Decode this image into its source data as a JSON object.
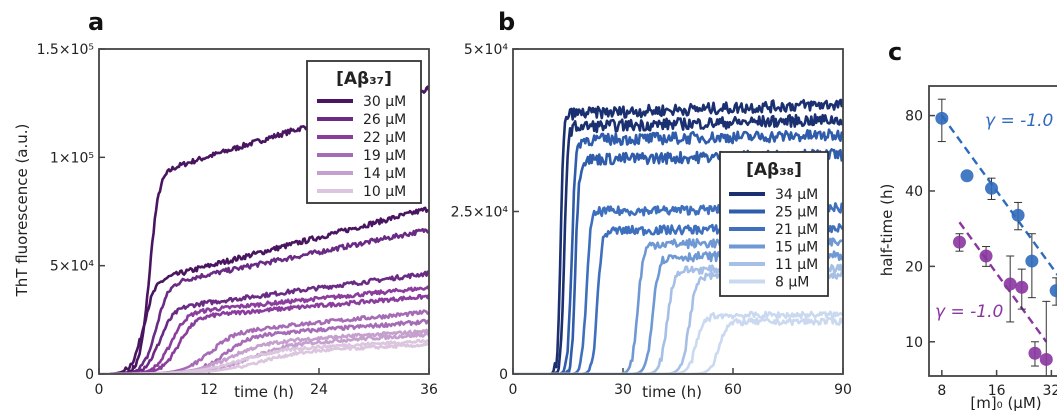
{
  "colors": {
    "c30": "#4a1560",
    "c26": "#6a2b84",
    "c22": "#8a3d9d",
    "c19": "#a66bb5",
    "c14": "#c59fcd",
    "c10": "#dcc6df",
    "c34": "#1b3070",
    "c25": "#2f5cab",
    "c21": "#3e70be",
    "c15": "#6f99d4",
    "c11": "#a6bfe6",
    "c8": "#cad9f0",
    "blue_fit": "#2f6bbd",
    "purple_fit": "#8a36a0"
  },
  "chart_data": [
    {
      "type": "line",
      "panel": "a",
      "ylabel": "ThT fluorescence (a.u.)",
      "xlabel": "time (h)",
      "xlim": [
        0,
        36
      ],
      "ylim": [
        0,
        150000
      ],
      "xticks": [
        {
          "v": 0,
          "label": "0"
        },
        {
          "v": 12,
          "label": "12"
        },
        {
          "v": 24,
          "label": "24"
        },
        {
          "v": 36,
          "label": "36"
        }
      ],
      "yticks": [
        {
          "v": 0,
          "label": "0"
        },
        {
          "v": 50000,
          "label": "5×10⁴"
        },
        {
          "v": 100000,
          "label": "1×10⁵"
        },
        {
          "v": 150000,
          "label": "1.5×10⁵"
        }
      ],
      "legend_title": "[Aβ₃₇]",
      "legend_position": "top-right",
      "series": [
        {
          "name": "30 µM",
          "color": "c30",
          "replicates": [
            {
              "t50": 5.5,
              "k": 2.0,
              "plateau": 92000,
              "drift": 1300,
              "jitter": 1200
            },
            {
              "t50": 4.8,
              "k": 1.6,
              "plateau": 42000,
              "drift": 1100,
              "jitter": 1200
            }
          ]
        },
        {
          "name": "26 µM",
          "color": "c26",
          "replicates": [
            {
              "t50": 6.2,
              "k": 1.5,
              "plateau": 41000,
              "drift": 860,
              "jitter": 1100
            },
            {
              "t50": 6.6,
              "k": 1.3,
              "plateau": 30000,
              "drift": 560,
              "jitter": 1000
            }
          ]
        },
        {
          "name": "22 µM",
          "color": "c22",
          "replicates": [
            {
              "t50": 7.8,
              "k": 1.2,
              "plateau": 28000,
              "drift": 420,
              "jitter": 900
            },
            {
              "t50": 8.6,
              "k": 1.1,
              "plateau": 26000,
              "drift": 360,
              "jitter": 900
            }
          ]
        },
        {
          "name": "19 µM",
          "color": "c19",
          "replicates": [
            {
              "t50": 12.0,
              "k": 0.7,
              "plateau": 19000,
              "drift": 400,
              "jitter": 900
            },
            {
              "t50": 13.5,
              "k": 0.7,
              "plateau": 17000,
              "drift": 320,
              "jitter": 900
            }
          ]
        },
        {
          "name": "14 µM",
          "color": "c14",
          "replicates": [
            {
              "t50": 14.0,
              "k": 0.5,
              "plateau": 14000,
              "drift": 260,
              "jitter": 800
            },
            {
              "t50": 16.0,
              "k": 0.45,
              "plateau": 13000,
              "drift": 260,
              "jitter": 800
            }
          ]
        },
        {
          "name": "10 µM",
          "color": "c10",
          "replicates": [
            {
              "t50": 15.0,
              "k": 0.4,
              "plateau": 11000,
              "drift": 200,
              "jitter": 700
            },
            {
              "t50": 17.0,
              "k": 0.4,
              "plateau": 10000,
              "drift": 180,
              "jitter": 700
            }
          ]
        }
      ]
    },
    {
      "type": "line",
      "panel": "b",
      "xlabel": "time (h)",
      "xlim": [
        0,
        90
      ],
      "ylim": [
        0,
        50000
      ],
      "xticks": [
        {
          "v": 0,
          "label": "0"
        },
        {
          "v": 30,
          "label": "30"
        },
        {
          "v": 60,
          "label": "60"
        },
        {
          "v": 90,
          "label": "90"
        }
      ],
      "yticks": [
        {
          "v": 0,
          "label": "0"
        },
        {
          "v": 25000,
          "label": "2.5×10⁴"
        },
        {
          "v": 50000,
          "label": "5×10⁴"
        }
      ],
      "legend_title": "[Aβ₃₈]",
      "legend_position": "right",
      "series": [
        {
          "name": "34 µM",
          "color": "c34",
          "replicates": [
            {
              "t50": 13.0,
              "k": 2.5,
              "plateau": 40000,
              "drift": 20,
              "jitter": 900
            },
            {
              "t50": 14.0,
              "k": 2.3,
              "plateau": 38000,
              "drift": 15,
              "jitter": 900
            }
          ]
        },
        {
          "name": "25 µM",
          "color": "c25",
          "replicates": [
            {
              "t50": 16.0,
              "k": 2.0,
              "plateau": 36000,
              "drift": 10,
              "jitter": 900
            },
            {
              "t50": 17.0,
              "k": 2.0,
              "plateau": 33000,
              "drift": 10,
              "jitter": 900
            }
          ]
        },
        {
          "name": "21 µM",
          "color": "c21",
          "replicates": [
            {
              "t50": 20.0,
              "k": 1.7,
              "plateau": 25000,
              "drift": 8,
              "jitter": 700
            },
            {
              "t50": 23.0,
              "k": 1.6,
              "plateau": 22000,
              "drift": 8,
              "jitter": 700
            }
          ]
        },
        {
          "name": "15 µM",
          "color": "c15",
          "replicates": [
            {
              "t50": 34.0,
              "k": 1.3,
              "plateau": 20000,
              "drift": 5,
              "jitter": 700
            },
            {
              "t50": 38.0,
              "k": 1.2,
              "plateau": 18000,
              "drift": 5,
              "jitter": 700
            }
          ]
        },
        {
          "name": "11 µM",
          "color": "c11",
          "replicates": [
            {
              "t50": 42.0,
              "k": 1.1,
              "plateau": 16000,
              "drift": 5,
              "jitter": 600
            },
            {
              "t50": 48.0,
              "k": 1.0,
              "plateau": 15000,
              "drift": 5,
              "jitter": 600
            }
          ]
        },
        {
          "name": "8 µM",
          "color": "c8",
          "replicates": [
            {
              "t50": 50.0,
              "k": 0.9,
              "plateau": 9000,
              "drift": 3,
              "jitter": 500
            },
            {
              "t50": 56.0,
              "k": 0.9,
              "plateau": 8000,
              "drift": 3,
              "jitter": 500
            }
          ]
        }
      ]
    },
    {
      "type": "scatter",
      "panel": "c",
      "xlabel": "[m]₀ (µM)",
      "ylabel": "half-time (h)",
      "xscale": "log",
      "yscale": "log",
      "xlim": [
        6.8,
        40
      ],
      "ylim": [
        7.3,
        105
      ],
      "xticks": [
        {
          "v": 8,
          "label": "8"
        },
        {
          "v": 16,
          "label": "16"
        },
        {
          "v": 32,
          "label": "32"
        }
      ],
      "yticks": [
        {
          "v": 10,
          "label": "10"
        },
        {
          "v": 20,
          "label": "20"
        },
        {
          "v": 40,
          "label": "40"
        },
        {
          "v": 80,
          "label": "80"
        }
      ],
      "series": [
        {
          "name": "Aβ38",
          "color": "blue_fit",
          "gamma_label": "γ = -1.0",
          "points": [
            {
              "x": 8,
              "y": 78,
              "err": 15
            },
            {
              "x": 11,
              "y": 46,
              "err": 0
            },
            {
              "x": 15,
              "y": 41,
              "err": 4
            },
            {
              "x": 21,
              "y": 32,
              "err": 4
            },
            {
              "x": 25,
              "y": 21,
              "err": 6
            },
            {
              "x": 34,
              "y": 16,
              "err": 2
            }
          ],
          "fit": {
            "gamma": -1.0,
            "x0": 8,
            "y0": 80,
            "x_range": [
              8,
              36
            ]
          }
        },
        {
          "name": "Aβ37",
          "color": "purple_fit",
          "gamma_label": "γ = -1.0",
          "points": [
            {
              "x": 10,
              "y": 25,
              "err": 2
            },
            {
              "x": 14,
              "y": 22,
              "err": 2
            },
            {
              "x": 19,
              "y": 17,
              "err": 5
            },
            {
              "x": 22,
              "y": 16.5,
              "err": 3
            },
            {
              "x": 26,
              "y": 9,
              "err": 1
            },
            {
              "x": 30,
              "y": 8.5,
              "err": 6
            }
          ],
          "fit": {
            "gamma": -1.0,
            "x0": 10,
            "y0": 30,
            "x_range": [
              10,
              30
            ]
          }
        }
      ]
    }
  ]
}
